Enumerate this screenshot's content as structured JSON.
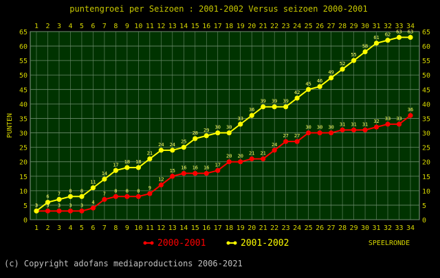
{
  "chart_data": {
    "type": "line",
    "title": "puntengroei per Seizoen : 2001-2002 Versus seizoen 2000-2001",
    "ylabel": "PUNTEN",
    "xlabel": "SPEELRONDE",
    "ylim": [
      0,
      65
    ],
    "xlim": [
      1,
      34
    ],
    "x": [
      1,
      2,
      3,
      4,
      5,
      6,
      7,
      8,
      9,
      10,
      11,
      12,
      13,
      14,
      15,
      16,
      17,
      18,
      19,
      20,
      21,
      22,
      23,
      24,
      25,
      26,
      27,
      28,
      29,
      30,
      31,
      32,
      33,
      34
    ],
    "y_ticks": [
      0,
      5,
      10,
      15,
      20,
      25,
      30,
      35,
      40,
      45,
      50,
      55,
      60,
      65
    ],
    "grid": true,
    "legend_position": "bottom",
    "series": [
      {
        "name": "2000-2001",
        "color": "#ff0000",
        "values": [
          3,
          3,
          3,
          3,
          3,
          4,
          7,
          8,
          8,
          8,
          9,
          12,
          15,
          16,
          16,
          16,
          17,
          20,
          20,
          21,
          21,
          24,
          27,
          27,
          30,
          30,
          30,
          31,
          31,
          31,
          32,
          33,
          33,
          36
        ]
      },
      {
        "name": "2001-2002",
        "color": "#ffff00",
        "values": [
          3,
          6,
          7,
          8,
          8,
          11,
          14,
          17,
          18,
          18,
          21,
          24,
          24,
          25,
          28,
          29,
          30,
          30,
          33,
          36,
          39,
          39,
          39,
          42,
          45,
          46,
          49,
          52,
          55,
          58,
          61,
          62,
          63,
          63
        ]
      }
    ]
  },
  "footer": "(c) Copyright adofans mediaproductions 2006-2021",
  "colors": {
    "plot_background": "#003300",
    "grid": "#6e8c6e",
    "axis_text": "#d6d600"
  }
}
